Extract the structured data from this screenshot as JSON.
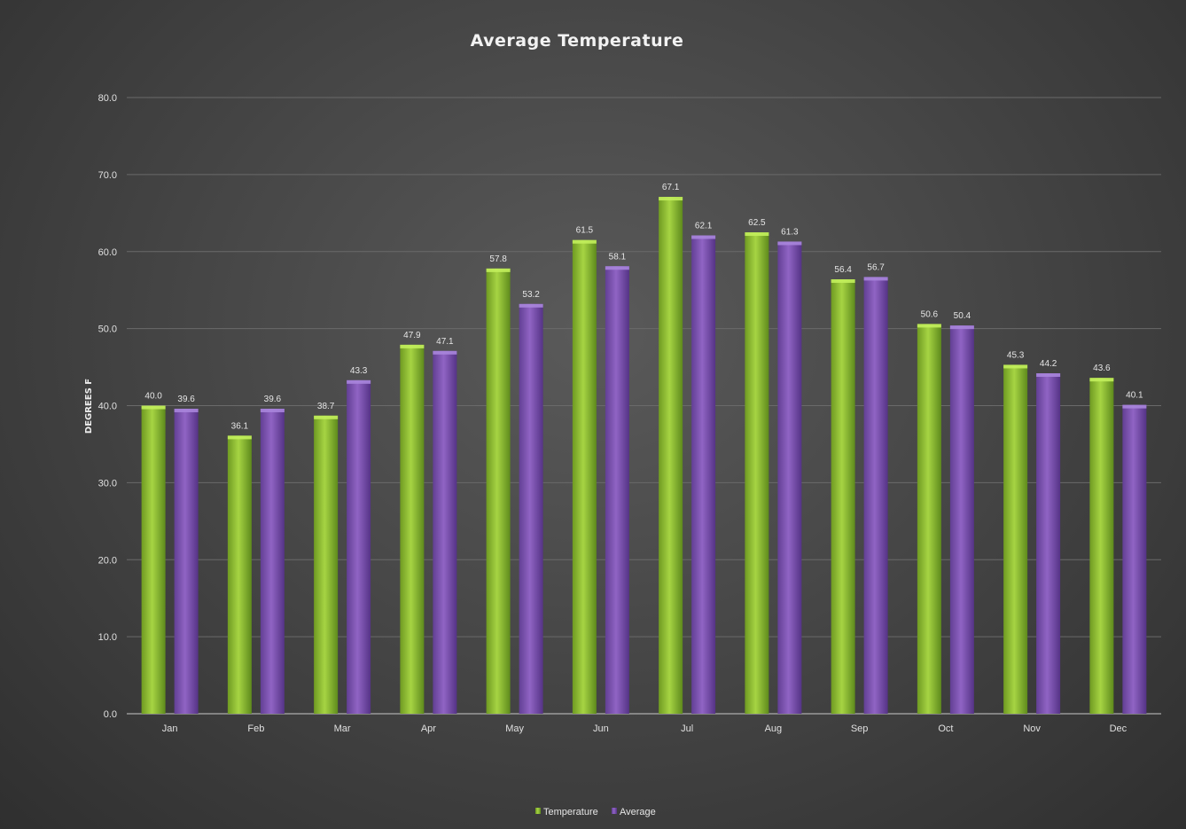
{
  "chart_data": {
    "type": "bar",
    "title": "Average Temperature",
    "ylabel": "DEGREES F",
    "xlabel": "",
    "categories": [
      "Jan",
      "Feb",
      "Mar",
      "Apr",
      "May",
      "Jun",
      "Jul",
      "Aug",
      "Sep",
      "Oct",
      "Nov",
      "Dec"
    ],
    "series": [
      {
        "name": "Temperature",
        "values": [
          40.0,
          36.1,
          38.7,
          47.9,
          57.8,
          61.5,
          67.1,
          62.5,
          56.4,
          50.6,
          45.3,
          43.6
        ],
        "color": "#8dbb32"
      },
      {
        "name": "Average",
        "values": [
          39.6,
          39.6,
          43.3,
          47.1,
          53.2,
          58.1,
          62.1,
          61.3,
          56.7,
          50.4,
          44.2,
          40.1
        ],
        "color": "#7e52b0"
      }
    ],
    "ylim": [
      0,
      80
    ],
    "yticks": [
      "0.0",
      "10.0",
      "20.0",
      "30.0",
      "40.0",
      "50.0",
      "60.0",
      "70.0",
      "80.0"
    ],
    "grid": true,
    "legend_position": "bottom",
    "data_labels": true
  }
}
